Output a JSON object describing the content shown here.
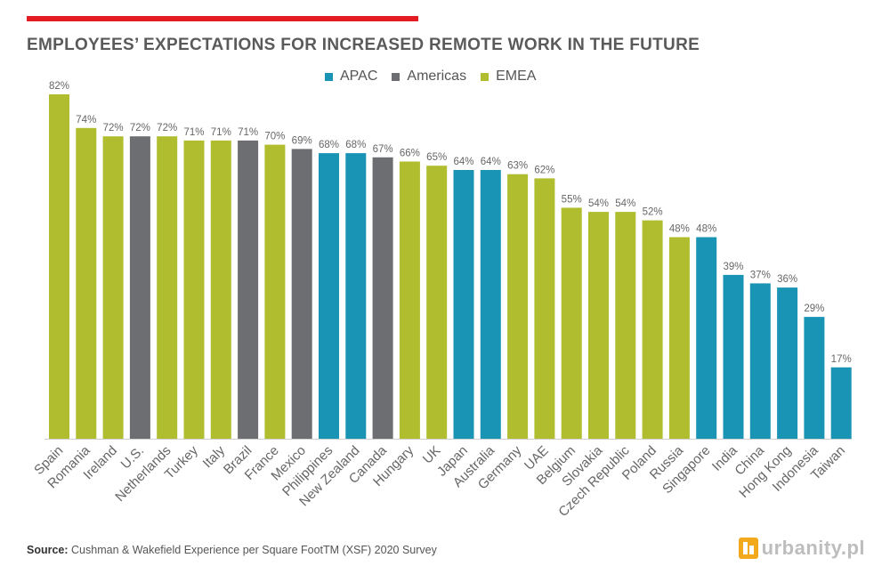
{
  "header": {
    "title": "EMPLOYEES’ EXPECTATIONS FOR INCREASED REMOTE WORK IN THE FUTURE"
  },
  "legend": [
    {
      "label": "APAC",
      "color": "#1a94b5"
    },
    {
      "label": "Americas",
      "color": "#6d6e71"
    },
    {
      "label": "EMEA",
      "color": "#afbd2e"
    }
  ],
  "chart_data": {
    "type": "bar",
    "title": "EMPLOYEES’ EXPECTATIONS FOR INCREASED REMOTE WORK IN THE FUTURE",
    "xlabel": "",
    "ylabel": "",
    "ylim": [
      0,
      100
    ],
    "grid": false,
    "legend_position": "top-center",
    "unit": "%",
    "categories": [
      "Spain",
      "Romania",
      "Ireland",
      "U.S.",
      "Netherlands",
      "Turkey",
      "Italy",
      "Brazil",
      "France",
      "Mexico",
      "Philippines",
      "New Zealand",
      "Canada",
      "Hungary",
      "UK",
      "Japan",
      "Australia",
      "Germany",
      "UAE",
      "Belgium",
      "Slovakia",
      "Czech Republic",
      "Poland",
      "Russia",
      "Singapore",
      "India",
      "China",
      "Hong Kong",
      "Indonesia",
      "Taiwan"
    ],
    "values": [
      82,
      74,
      72,
      72,
      72,
      71,
      71,
      71,
      70,
      69,
      68,
      68,
      67,
      66,
      65,
      64,
      64,
      63,
      62,
      55,
      54,
      54,
      52,
      48,
      48,
      39,
      37,
      36,
      29,
      17
    ],
    "labels": [
      "82%",
      "74%",
      "72%",
      "72%",
      "72%",
      "71%",
      "71%",
      "71%",
      "70%",
      "69%",
      "68%",
      "68%",
      "67%",
      "66%",
      "65%",
      "64%",
      "64%",
      "63%",
      "62%",
      "55%",
      "54%",
      "54%",
      "52%",
      "48%",
      "48%",
      "39%",
      "37%",
      "36%",
      "29%",
      "17%"
    ],
    "regions": [
      "EMEA",
      "EMEA",
      "EMEA",
      "Americas",
      "EMEA",
      "EMEA",
      "EMEA",
      "Americas",
      "EMEA",
      "Americas",
      "APAC",
      "APAC",
      "Americas",
      "EMEA",
      "EMEA",
      "APAC",
      "APAC",
      "EMEA",
      "EMEA",
      "EMEA",
      "EMEA",
      "EMEA",
      "EMEA",
      "EMEA",
      "APAC",
      "APAC",
      "APAC",
      "APAC",
      "APAC",
      "APAC"
    ]
  },
  "footer": {
    "source_label": "Source:",
    "source_text": " Cushman & Wakefield Experience per Square FootTM  (XSF) 2020 Survey",
    "logo_text": "urbanity.pl"
  }
}
